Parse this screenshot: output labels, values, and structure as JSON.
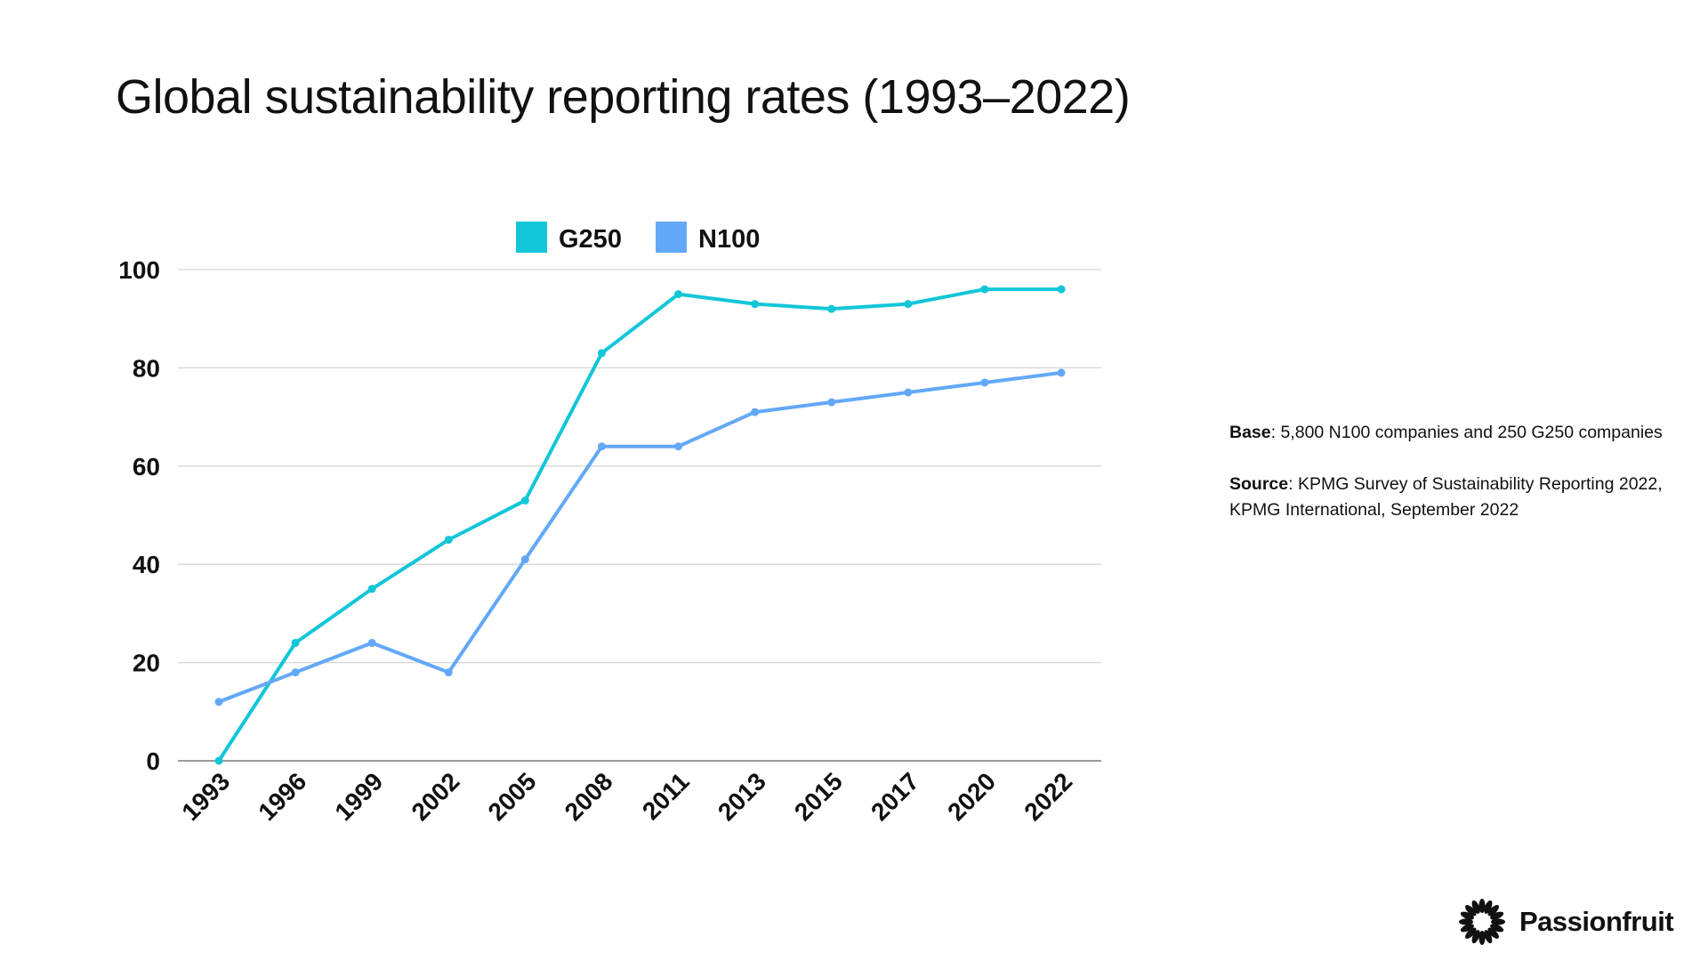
{
  "page": {
    "title": "Global sustainability reporting rates (1993–2022)"
  },
  "chart_data": {
    "type": "line",
    "title": "Global sustainability reporting rates (1993–2022)",
    "xlabel": "",
    "ylabel": "",
    "categories": [
      "1993",
      "1996",
      "1999",
      "2002",
      "2005",
      "2008",
      "2011",
      "2013",
      "2015",
      "2017",
      "2020",
      "2022"
    ],
    "yticks": [
      "0",
      "20",
      "40",
      "60",
      "80",
      "100"
    ],
    "ylim": [
      0,
      100
    ],
    "grid": true,
    "legend_position": "top-center",
    "series": [
      {
        "name": "G250",
        "color": "#12C6D8",
        "values": [
          0,
          24,
          35,
          45,
          53,
          83,
          95,
          93,
          92,
          93,
          96,
          96
        ]
      },
      {
        "name": "N100",
        "color": "#63A8F8",
        "values": [
          12,
          18,
          24,
          18,
          41,
          64,
          64,
          71,
          73,
          75,
          77,
          79
        ]
      }
    ]
  },
  "notes": {
    "base_label": "Base",
    "base_text": ": 5,800 N100 companies and 250 G250 companies",
    "source_label": "Source",
    "source_text": ": KPMG Survey of Sustainability Reporting 2022, KPMG International, September 2022"
  },
  "brand": {
    "name": "Passionfruit",
    "icon": "passionfruit-logo-icon"
  }
}
